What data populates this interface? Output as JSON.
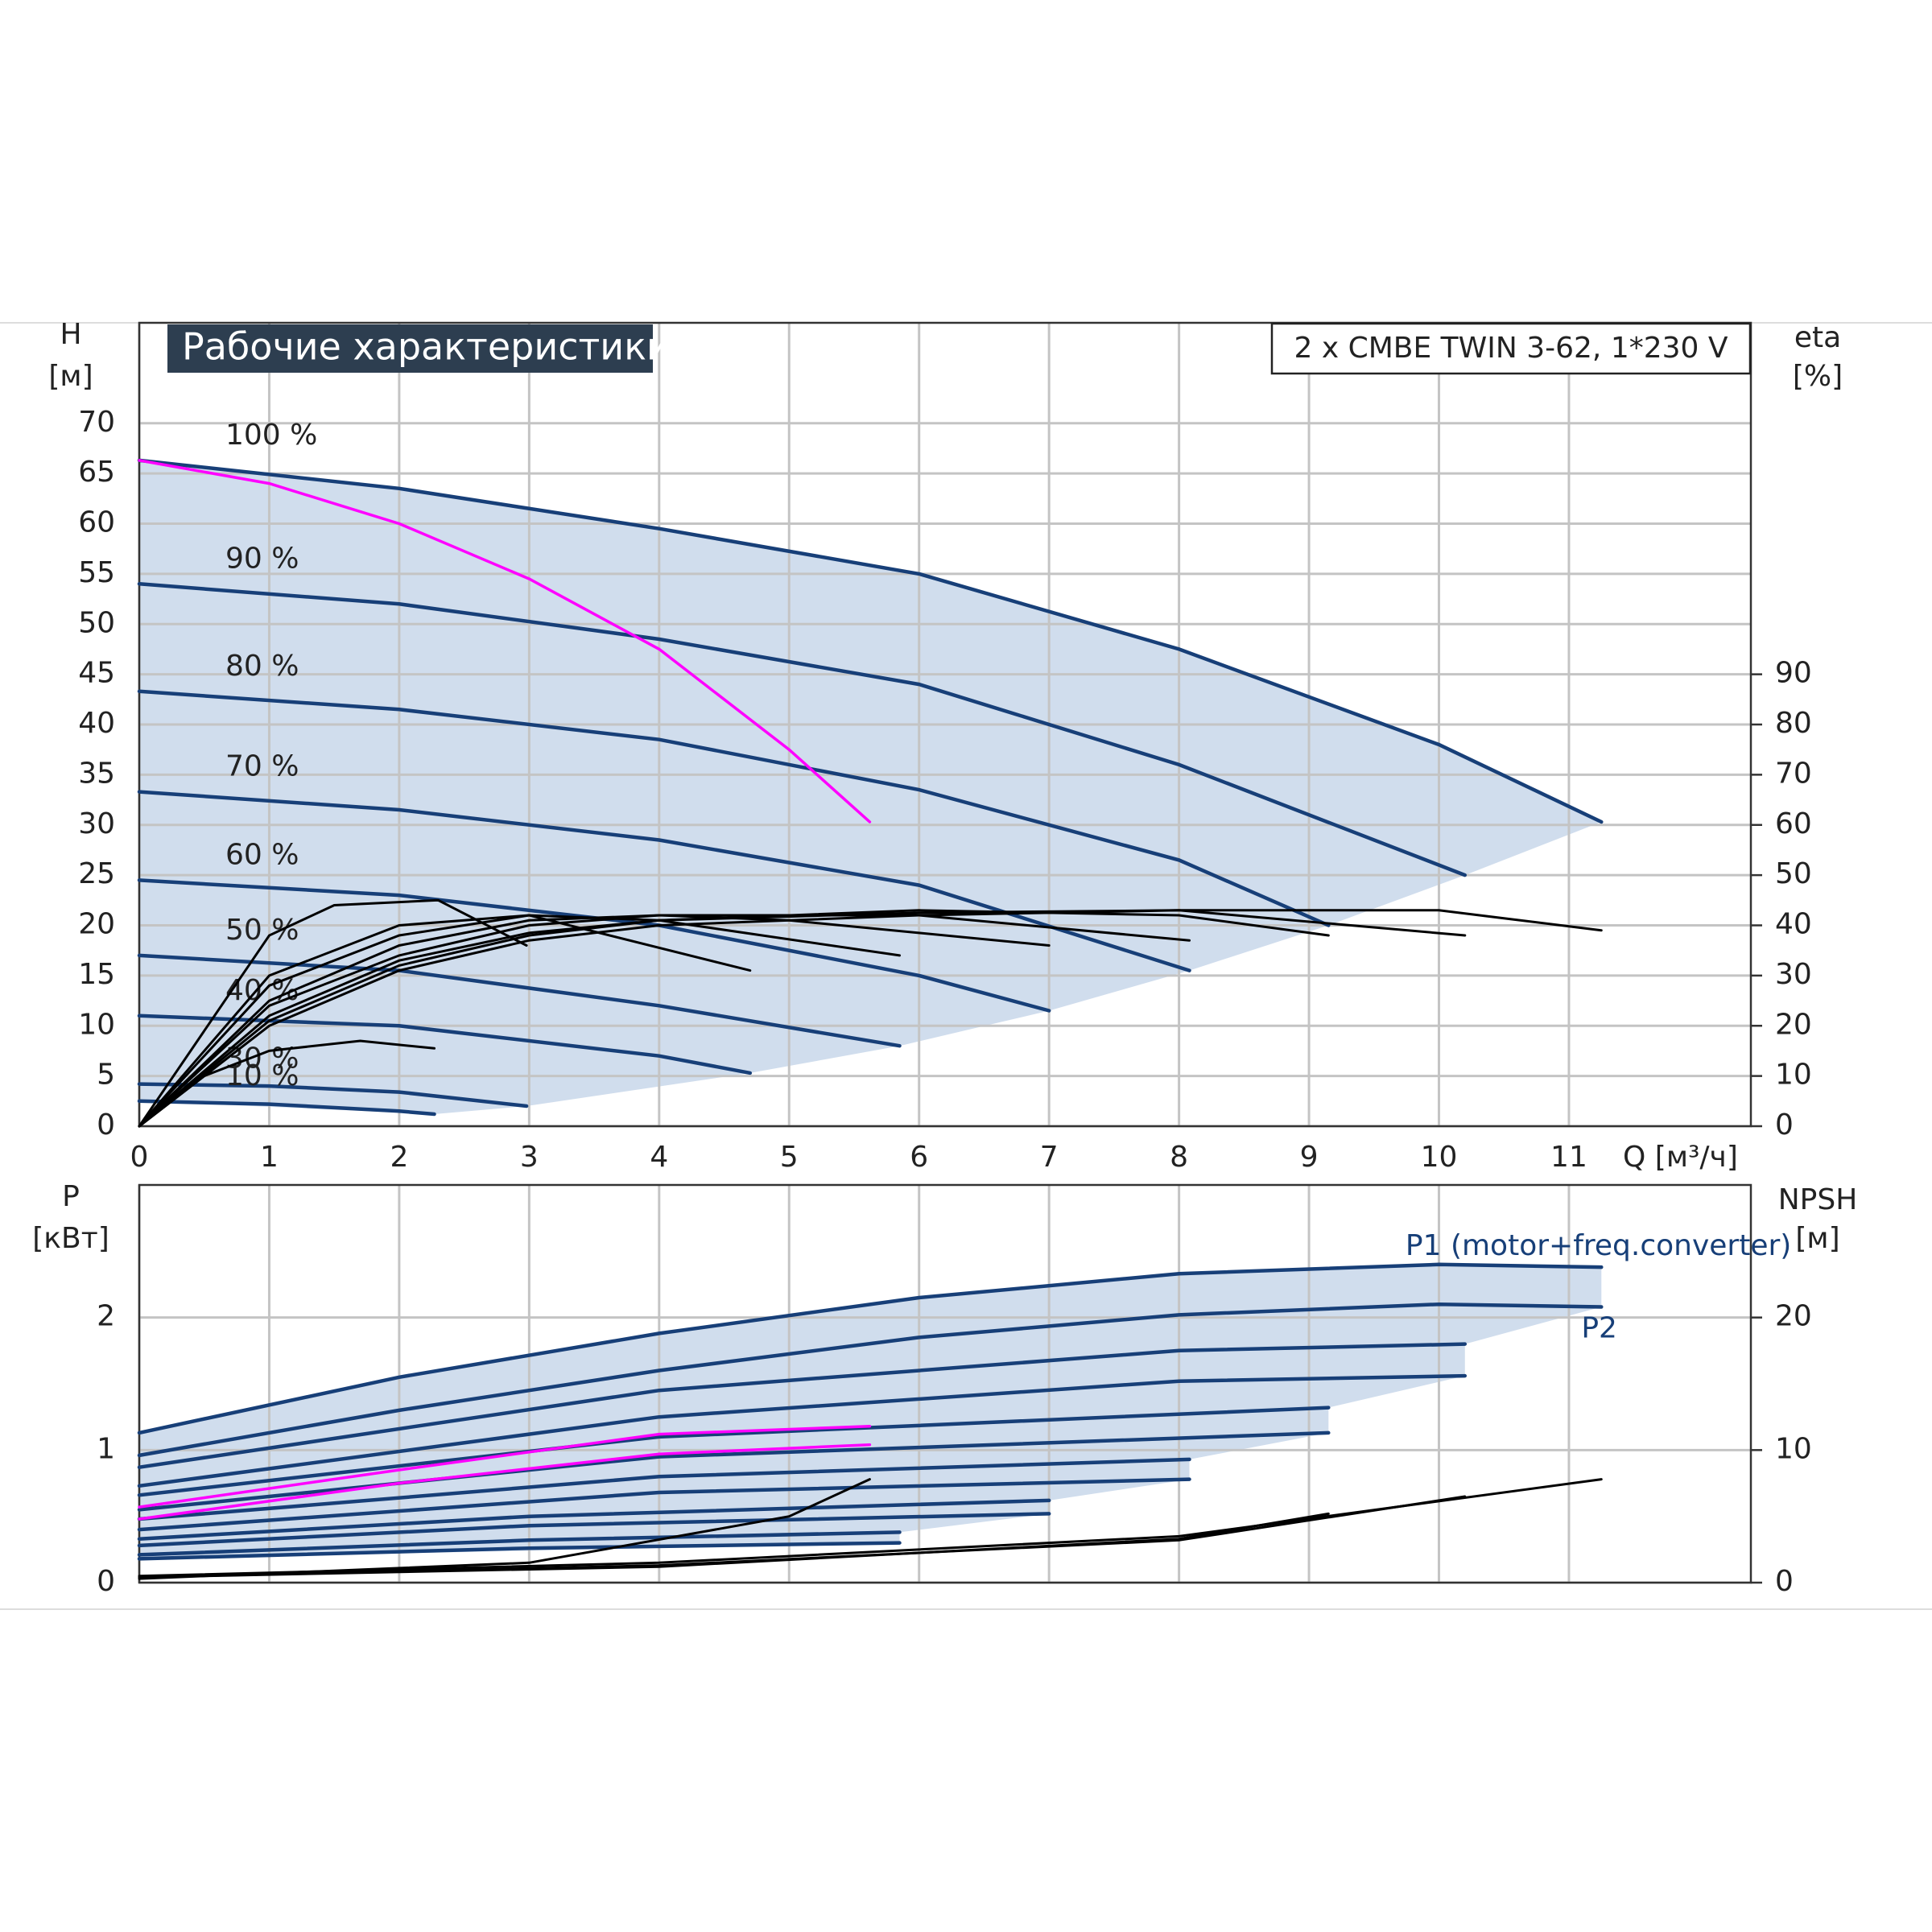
{
  "chart_data": [
    {
      "type": "line",
      "title": "Рабочие характеристики",
      "subtitle": "2 x CMBE TWIN 3-62, 1*230 V",
      "ylabel": "H",
      "yunit": "[м]",
      "y2label": "eta",
      "y2unit": "[%]",
      "xlabel": "Q [м³/ч]",
      "xlim": [
        0,
        12.4
      ],
      "ylim": [
        0,
        80
      ],
      "y2lim": [
        0,
        160
      ],
      "xticks": [
        0,
        1,
        2,
        3,
        4,
        5,
        6,
        7,
        8,
        9,
        10,
        11
      ],
      "yticks": [
        0,
        5,
        10,
        15,
        20,
        25,
        30,
        35,
        40,
        45,
        50,
        55,
        60,
        65,
        70
      ],
      "y2ticks": [
        0,
        10,
        20,
        30,
        40,
        50,
        60,
        70,
        80,
        90
      ],
      "grid": true,
      "range_color": "#d0dded",
      "series": [
        {
          "name": "100 %",
          "name_position": "start",
          "color": "#173f78",
          "range": true,
          "x": [
            0,
            2,
            4,
            6,
            8,
            10,
            11.25
          ],
          "values": [
            66.3,
            63.5,
            59.5,
            55,
            47.5,
            38,
            30.3
          ]
        },
        {
          "name": "90 %",
          "name_position": "start",
          "color": "#173f78",
          "range": true,
          "x": [
            0,
            2,
            4,
            6,
            8,
            10.2
          ],
          "values": [
            54,
            52,
            48.5,
            44,
            36,
            25
          ]
        },
        {
          "name": "80 %",
          "name_position": "start",
          "color": "#173f78",
          "range": true,
          "x": [
            0,
            2,
            4,
            6,
            8,
            9.15
          ],
          "values": [
            43.3,
            41.5,
            38.5,
            33.5,
            26.5,
            20
          ]
        },
        {
          "name": "70 %",
          "name_position": "start",
          "color": "#173f78",
          "range": true,
          "x": [
            0,
            2,
            4,
            6,
            8.08
          ],
          "values": [
            33.3,
            31.5,
            28.5,
            24,
            15.5
          ]
        },
        {
          "name": "60 %",
          "name_position": "start",
          "color": "#173f78",
          "range": true,
          "x": [
            0,
            2,
            4,
            6,
            7
          ],
          "values": [
            24.5,
            23,
            20,
            15,
            11.5
          ]
        },
        {
          "name": "50 %",
          "name_position": "start",
          "color": "#173f78",
          "range": true,
          "x": [
            0,
            2,
            4,
            5.85
          ],
          "values": [
            17,
            15.5,
            12,
            8
          ]
        },
        {
          "name": "40 %",
          "name_position": "start",
          "color": "#173f78",
          "range": true,
          "x": [
            0,
            2,
            4,
            4.7
          ],
          "values": [
            11,
            10,
            7,
            5.3
          ]
        },
        {
          "name": "30 %",
          "name_position": "start",
          "color": "#173f78",
          "range": true,
          "x": [
            0,
            1,
            2,
            2.98
          ],
          "values": [
            4.2,
            4,
            3.4,
            2
          ]
        },
        {
          "name": "10 %",
          "name_position": "start",
          "color": "#173f78",
          "range": true,
          "x": [
            0,
            1,
            2,
            2.27
          ],
          "values": [
            2.5,
            2.2,
            1.5,
            1.2
          ]
        },
        {
          "color": "#ff00ff",
          "x": [
            0,
            1,
            2,
            3,
            4,
            5,
            5.62
          ],
          "values": [
            66.3,
            64,
            60,
            54.5,
            47.5,
            37.5,
            30.3
          ]
        },
        {
          "color": "#000000",
          "axis": "y2",
          "x": [
            0,
            1,
            2,
            3,
            4,
            6,
            8,
            10,
            11.25
          ],
          "values": [
            0,
            20,
            31,
            37,
            40,
            42,
            43,
            43,
            39
          ]
        },
        {
          "color": "#000000",
          "axis": "y2",
          "x": [
            0,
            1,
            2,
            3,
            4,
            6,
            8,
            10.2
          ],
          "values": [
            0,
            21,
            32,
            38,
            41,
            42.5,
            43,
            38
          ]
        },
        {
          "color": "#000000",
          "axis": "y2",
          "x": [
            0,
            1,
            2,
            3,
            4,
            6,
            8,
            9.15
          ],
          "values": [
            0,
            22,
            33,
            38.5,
            41,
            43,
            42,
            38
          ]
        },
        {
          "color": "#000000",
          "axis": "y2",
          "x": [
            0,
            1,
            2,
            3,
            4,
            6,
            8.08
          ],
          "values": [
            0,
            24,
            34,
            40,
            42,
            42,
            37
          ]
        },
        {
          "color": "#000000",
          "axis": "y2",
          "x": [
            0,
            1,
            2,
            3,
            4,
            5,
            7
          ],
          "values": [
            0,
            25,
            36,
            41,
            42,
            41,
            36
          ]
        },
        {
          "color": "#000000",
          "axis": "y2",
          "x": [
            0,
            1,
            2,
            3,
            4,
            5.85
          ],
          "values": [
            0,
            28,
            38,
            42,
            41,
            34
          ]
        },
        {
          "color": "#000000",
          "axis": "y2",
          "x": [
            0,
            1,
            2,
            3,
            4.7
          ],
          "values": [
            0,
            30,
            40,
            42,
            31
          ]
        },
        {
          "color": "#000000",
          "axis": "y2",
          "x": [
            0,
            1,
            1.5,
            2.3,
            2.98
          ],
          "values": [
            0,
            38,
            44,
            45,
            36
          ]
        },
        {
          "color": "#000000",
          "axis": "y2",
          "x": [
            0,
            0.5,
            1,
            1.7,
            2.27
          ],
          "values": [
            0,
            10,
            15,
            17,
            15.5
          ]
        }
      ]
    },
    {
      "type": "line",
      "ylabel": "P",
      "yunit": "[кВт]",
      "y2label": "NPSH",
      "y2unit": "[м]",
      "xlim": [
        0,
        12.4
      ],
      "ylim": [
        0,
        3
      ],
      "y2lim": [
        0,
        30
      ],
      "yticks": [
        0,
        1,
        2
      ],
      "y2ticks": [
        0,
        10,
        20
      ],
      "grid": true,
      "range_color": "#d0dded",
      "series": [
        {
          "name": "P1 (motor+freq.converter)",
          "name_position": "end-above",
          "color": "#173f78",
          "range": true,
          "x": [
            0,
            2,
            4,
            6,
            8,
            10,
            11.25
          ],
          "values": [
            1.13,
            1.55,
            1.88,
            2.15,
            2.33,
            2.4,
            2.38
          ]
        },
        {
          "name": "P2",
          "name_position": "end-below",
          "color": "#173f78",
          "range": true,
          "x": [
            0,
            2,
            4,
            6,
            8,
            10,
            11.25
          ],
          "values": [
            0.96,
            1.3,
            1.6,
            1.85,
            2.02,
            2.1,
            2.08
          ]
        },
        {
          "color": "#173f78",
          "range": true,
          "x": [
            0,
            4,
            8,
            10.2
          ],
          "values": [
            0.87,
            1.45,
            1.75,
            1.8
          ]
        },
        {
          "color": "#173f78",
          "range": true,
          "x": [
            0,
            4,
            8,
            10.2
          ],
          "values": [
            0.73,
            1.25,
            1.52,
            1.56
          ]
        },
        {
          "color": "#173f78",
          "range": true,
          "x": [
            0,
            4,
            9.15
          ],
          "values": [
            0.66,
            1.1,
            1.32
          ]
        },
        {
          "color": "#173f78",
          "range": true,
          "x": [
            0,
            4,
            9.15
          ],
          "values": [
            0.55,
            0.95,
            1.13
          ]
        },
        {
          "color": "#173f78",
          "range": true,
          "x": [
            0,
            4,
            8.08
          ],
          "values": [
            0.48,
            0.8,
            0.93
          ]
        },
        {
          "color": "#173f78",
          "range": true,
          "x": [
            0,
            4,
            8.08
          ],
          "values": [
            0.4,
            0.68,
            0.78
          ]
        },
        {
          "color": "#173f78",
          "range": true,
          "x": [
            0,
            3,
            7
          ],
          "values": [
            0.33,
            0.5,
            0.62
          ]
        },
        {
          "color": "#173f78",
          "range": true,
          "x": [
            0,
            3,
            7
          ],
          "values": [
            0.28,
            0.43,
            0.52
          ]
        },
        {
          "color": "#173f78",
          "range": true,
          "x": [
            0,
            3,
            5.85
          ],
          "values": [
            0.21,
            0.32,
            0.38
          ]
        },
        {
          "color": "#173f78",
          "range": true,
          "x": [
            0,
            3,
            5.85
          ],
          "values": [
            0.18,
            0.26,
            0.3
          ]
        },
        {
          "color": "#ff00ff",
          "x": [
            0,
            2,
            4,
            5.62
          ],
          "values": [
            0.57,
            0.85,
            1.12,
            1.18
          ]
        },
        {
          "color": "#ff00ff",
          "x": [
            0,
            2,
            4,
            5.62
          ],
          "values": [
            0.48,
            0.75,
            0.97,
            1.04
          ]
        },
        {
          "color": "#000000",
          "axis": "y2",
          "x": [
            0,
            4,
            8,
            11.25
          ],
          "values": [
            0.5,
            1.5,
            3.5,
            7.8
          ]
        },
        {
          "color": "#000000",
          "axis": "y2",
          "x": [
            0,
            4,
            8,
            10.2
          ],
          "values": [
            0.4,
            1.3,
            3.2,
            6.5
          ]
        },
        {
          "color": "#000000",
          "axis": "y2",
          "x": [
            0,
            4,
            8,
            9.15
          ],
          "values": [
            0.4,
            1.2,
            3.3,
            5.2
          ]
        },
        {
          "color": "#000000",
          "axis": "y2",
          "x": [
            0,
            3,
            5,
            5.62
          ],
          "values": [
            0.3,
            1.5,
            5,
            7.8
          ]
        }
      ]
    }
  ]
}
